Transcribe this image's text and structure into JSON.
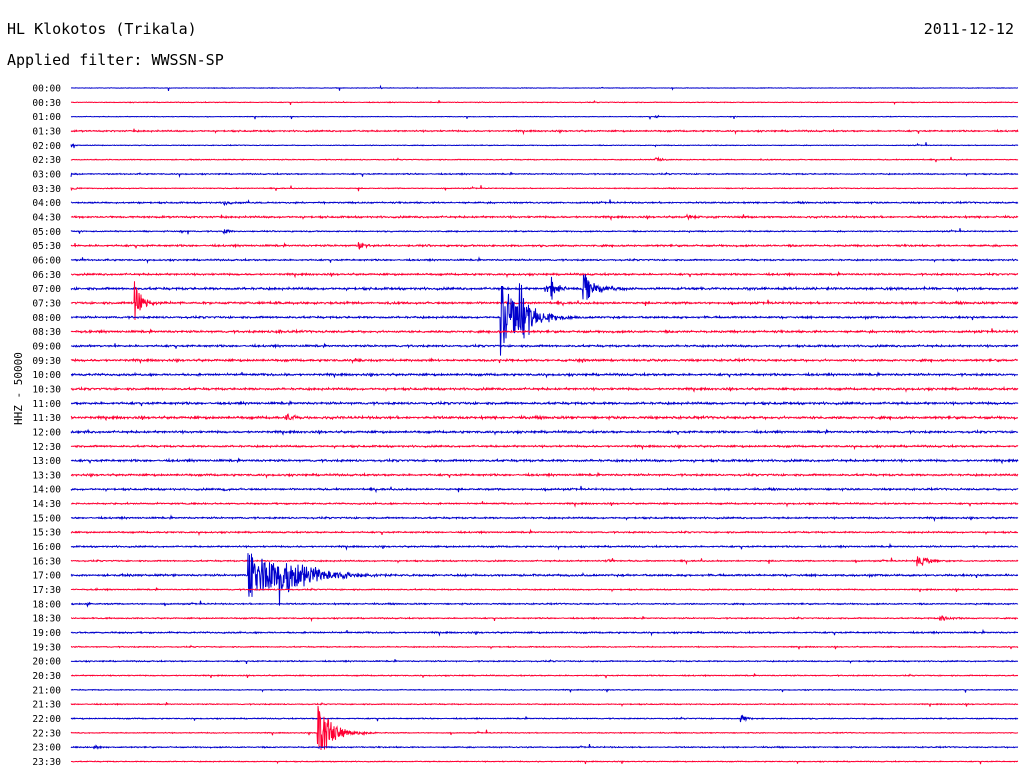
{
  "header": {
    "station": "HL Klokotos (Trikala)",
    "date": "2011-12-12",
    "filter": "Applied filter: WWSSN-SP"
  },
  "channel_label": "HHZ - 50000",
  "colors": {
    "even_row": "#0000cc",
    "odd_row": "#ff0033"
  },
  "chart_data": {
    "type": "line",
    "title": "HL Klokotos (Trikala)",
    "subtitle": "Applied filter: WWSSN-SP",
    "ylabel": "HHZ - 50000",
    "xlabel": "",
    "row_minutes": 30,
    "row_labels": [
      "00:00",
      "00:30",
      "01:00",
      "01:30",
      "02:00",
      "02:30",
      "03:00",
      "03:30",
      "04:00",
      "04:30",
      "05:00",
      "05:30",
      "06:00",
      "06:30",
      "07:00",
      "07:30",
      "08:00",
      "08:30",
      "09:00",
      "09:30",
      "10:00",
      "10:30",
      "11:00",
      "11:30",
      "12:00",
      "12:30",
      "13:00",
      "13:30",
      "14:00",
      "14:30",
      "15:00",
      "15:30",
      "16:00",
      "16:30",
      "17:00",
      "17:30",
      "18:00",
      "18:30",
      "19:00",
      "19:30",
      "20:00",
      "20:30",
      "21:00",
      "21:30",
      "22:00",
      "22:30",
      "23:00",
      "23:30"
    ],
    "row_noise": [
      0.4,
      0.5,
      0.4,
      1,
      0.5,
      0.6,
      0.8,
      0.6,
      1,
      1.2,
      0.8,
      1.2,
      1,
      1.2,
      1.5,
      1.4,
      1.3,
      1.4,
      1.3,
      1.4,
      1.4,
      1.4,
      1.5,
      1.6,
      1.4,
      1.2,
      1.4,
      1.3,
      1.2,
      1,
      1.1,
      1.0,
      1.0,
      0.9,
      1.3,
      0.8,
      0.9,
      0.8,
      1.0,
      0.7,
      0.8,
      0.7,
      0.6,
      0.7,
      0.7,
      0.6,
      0.8,
      0.6
    ],
    "events": [
      {
        "row": 7,
        "minute": 0.0,
        "amplitude": 3,
        "coda_minutes": 0.4
      },
      {
        "row": 4,
        "minute": 0.0,
        "amplitude": 2,
        "coda_minutes": 0.3
      },
      {
        "row": 9,
        "minute": 19.5,
        "amplitude": 3,
        "coda_minutes": 0.8
      },
      {
        "row": 8,
        "minute": 4.8,
        "amplitude": 3,
        "coda_minutes": 0.5
      },
      {
        "row": 10,
        "minute": 4.8,
        "amplitude": 3,
        "coda_minutes": 0.5
      },
      {
        "row": 11,
        "minute": 9.1,
        "amplitude": 4,
        "coda_minutes": 0.6
      },
      {
        "row": 15,
        "minute": 2.0,
        "amplitude": 25,
        "coda_minutes": 0.6
      },
      {
        "row": 14,
        "minute": 15.2,
        "amplitude": 12,
        "coda_minutes": 0.5
      },
      {
        "row": 14,
        "minute": 16.2,
        "amplitude": 18,
        "coda_minutes": 1.0
      },
      {
        "row": 16,
        "minute": 13.6,
        "amplitude": 40,
        "coda_minutes": 1.5
      },
      {
        "row": 16,
        "minute": 14.2,
        "amplitude": 32,
        "coda_minutes": 1.2
      },
      {
        "row": 14,
        "minute": 15.0,
        "amplitude": 6,
        "coda_minutes": 0.8
      },
      {
        "row": 17,
        "minute": 6.5,
        "amplitude": 3,
        "coda_minutes": 0.4
      },
      {
        "row": 19,
        "minute": 9.0,
        "amplitude": 3,
        "coda_minutes": 0.4
      },
      {
        "row": 23,
        "minute": 6.8,
        "amplitude": 4,
        "coda_minutes": 0.8
      },
      {
        "row": 28,
        "minute": 4.8,
        "amplitude": 3,
        "coda_minutes": 0.3
      },
      {
        "row": 34,
        "minute": 5.6,
        "amplitude": 26,
        "coda_minutes": 3.0
      },
      {
        "row": 34,
        "minute": 6.6,
        "amplitude": 22,
        "coda_minutes": 2.5
      },
      {
        "row": 33,
        "minute": 17.0,
        "amplitude": 3,
        "coda_minutes": 0.3
      },
      {
        "row": 33,
        "minute": 26.8,
        "amplitude": 7,
        "coda_minutes": 1.0
      },
      {
        "row": 36,
        "minute": 0.5,
        "amplitude": 3,
        "coda_minutes": 0.2
      },
      {
        "row": 37,
        "minute": 27.5,
        "amplitude": 3,
        "coda_minutes": 1.0
      },
      {
        "row": 44,
        "minute": 21.2,
        "amplitude": 4,
        "coda_minutes": 0.6
      },
      {
        "row": 46,
        "minute": 0.7,
        "amplitude": 2,
        "coda_minutes": 0.6
      },
      {
        "row": 45,
        "minute": 7.8,
        "amplitude": 32,
        "coda_minutes": 1.2
      },
      {
        "row": 2,
        "minute": 18.5,
        "amplitude": 2,
        "coda_minutes": 0.2
      },
      {
        "row": 5,
        "minute": 18.5,
        "amplitude": 3,
        "coda_minutes": 0.6
      },
      {
        "row": 0,
        "minute": 9.8,
        "amplitude": 2,
        "coda_minutes": 0.1
      },
      {
        "row": 0,
        "minute": 16.8,
        "amplitude": 2,
        "coda_minutes": 0.1
      }
    ]
  }
}
